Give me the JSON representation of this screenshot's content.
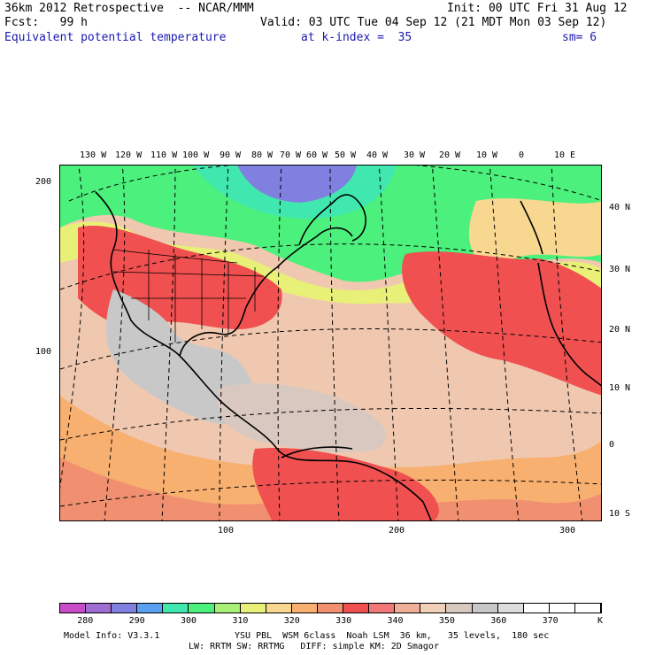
{
  "header": {
    "model_title": "36km 2012 Retrospective  -- NCAR/MMM",
    "init": "Init: 00 UTC Fri 31 Aug 12",
    "fcst": "Fcst:   99 h",
    "valid": "Valid: 03 UTC Tue 04 Sep 12 (21 MDT Mon 03 Sep 12)",
    "field": "Equivalent potential temperature",
    "level": "at k-index =  35",
    "smoothing": "sm= 6"
  },
  "map": {
    "top_lon_labels": [
      "130 W",
      "120 W",
      "110 W",
      "100 W",
      "90 W",
      "80 W",
      "70 W",
      "60 W",
      "50 W",
      "40 W",
      "30 W",
      "20 W",
      "10 W",
      "0",
      "10 E"
    ],
    "right_lat_labels": [
      "40 N",
      "30 N",
      "20 N",
      "10 N",
      "0",
      "10 S"
    ],
    "left_grid_labels": [
      "200",
      "100"
    ],
    "bottom_grid_labels": [
      "100",
      "200",
      "300"
    ]
  },
  "colorbar": {
    "labels": [
      "280",
      "290",
      "300",
      "310",
      "320",
      "330",
      "340",
      "350",
      "360",
      "370"
    ],
    "unit": "K",
    "colors": [
      "#c84bc8",
      "#a06ed2",
      "#8080e0",
      "#5aa0f0",
      "#40e8b0",
      "#4cf07c",
      "#a8f078",
      "#e8f078",
      "#f8d890",
      "#f8b070",
      "#f09070",
      "#f05050",
      "#f07878",
      "#f0b098",
      "#f0d0b8",
      "#d8c8c0",
      "#c8c8c8",
      "#dcdcdc",
      "#ffffff",
      "#ffffff",
      "#ffffff"
    ]
  },
  "footer": {
    "line1_left": "Model Info: V3.3.1",
    "line1_right": "YSU PBL  WSM 6class  Noah LSM  36 km,   35 levels,  180 sec",
    "line2": "LW: RRTM SW: RRTMG   DIFF: simple KM: 2D Smagor"
  }
}
